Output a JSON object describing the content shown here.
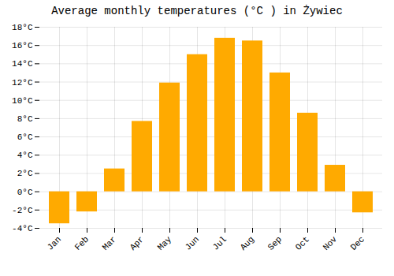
{
  "chart_data": {
    "type": "bar",
    "title": "Average monthly temperatures (°C ) in Żywiec",
    "categories": [
      "Jan",
      "Feb",
      "Mar",
      "Apr",
      "May",
      "Jun",
      "Jul",
      "Aug",
      "Sep",
      "Oct",
      "Nov",
      "Dec"
    ],
    "values": [
      -3.5,
      -2.2,
      2.5,
      7.7,
      11.9,
      15.0,
      16.8,
      16.5,
      13.0,
      8.6,
      2.9,
      -2.3
    ],
    "color": "#FFAA00",
    "ylim": [
      -4,
      18
    ],
    "yticks": [
      {
        "value": -4,
        "label": "-4°C"
      },
      {
        "value": -2,
        "label": "-2°C"
      },
      {
        "value": 0,
        "label": "0°C"
      },
      {
        "value": 2,
        "label": "2°C"
      },
      {
        "value": 4,
        "label": "4°C"
      },
      {
        "value": 6,
        "label": "6°C"
      },
      {
        "value": 8,
        "label": "8°C"
      },
      {
        "value": 10,
        "label": "10°C"
      },
      {
        "value": 12,
        "label": "12°C"
      },
      {
        "value": 14,
        "label": "14°C"
      },
      {
        "value": 16,
        "label": "16°C"
      },
      {
        "value": 18,
        "label": "18°C"
      }
    ],
    "grid": true
  }
}
